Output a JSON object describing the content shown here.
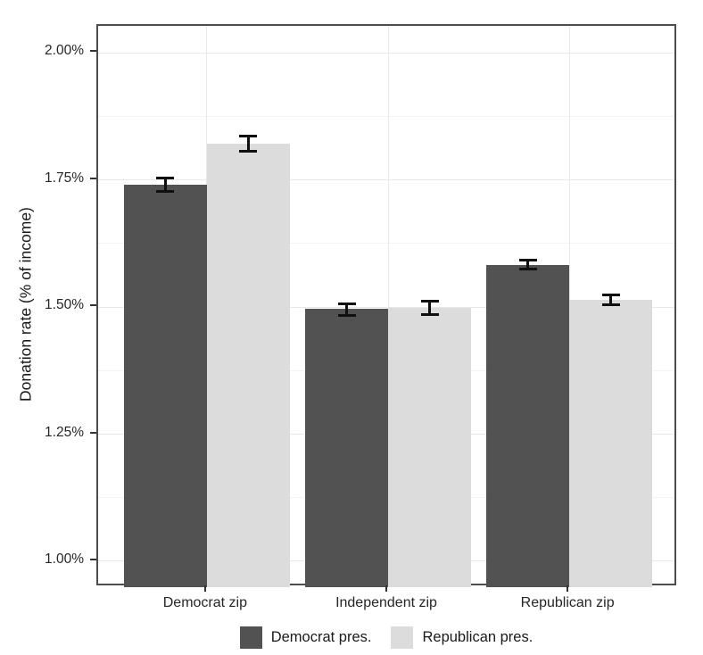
{
  "chart_data": {
    "type": "bar",
    "title": "",
    "xlabel": "",
    "ylabel": "Donation rate (% of income)",
    "categories": [
      "Democrat zip",
      "Independent zip",
      "Republican zip"
    ],
    "series": [
      {
        "name": "Democrat pres.",
        "color": "#525252",
        "values": [
          1.74,
          1.496,
          1.583
        ],
        "error_low": [
          1.727,
          1.484,
          1.574
        ],
        "error_high": [
          1.753,
          1.507,
          1.592
        ]
      },
      {
        "name": "Republican pres.",
        "color": "#dcdcdc",
        "values": [
          1.822,
          1.499,
          1.514
        ],
        "error_low": [
          1.807,
          1.486,
          1.505
        ],
        "error_high": [
          1.837,
          1.511,
          1.523
        ]
      }
    ],
    "y_tick_labels": [
      "1.00%",
      "1.25%",
      "1.50%",
      "1.75%",
      "2.00%"
    ],
    "y_tick_values": [
      1.0,
      1.25,
      1.5,
      1.75,
      2.0
    ],
    "y_minor_values": [
      1.125,
      1.375,
      1.625,
      1.875
    ],
    "ylim": [
      0.949,
      2.053
    ],
    "grid": true,
    "error_bars": true,
    "legend_position": "bottom"
  }
}
